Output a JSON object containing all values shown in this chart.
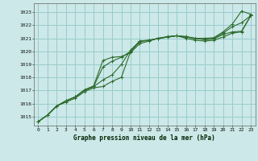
{
  "title": "Graphe pression niveau de la mer (hPa)",
  "background_color": "#cce8e8",
  "grid_color": "#99cccc",
  "line_color": "#2d6b2d",
  "xlim": [
    -0.5,
    23.5
  ],
  "ylim": [
    1014.3,
    1023.7
  ],
  "yticks": [
    1015,
    1016,
    1017,
    1018,
    1019,
    1020,
    1021,
    1022,
    1023
  ],
  "xticks": [
    0,
    1,
    2,
    3,
    4,
    5,
    6,
    7,
    8,
    9,
    10,
    11,
    12,
    13,
    14,
    15,
    16,
    17,
    18,
    19,
    20,
    21,
    22,
    23
  ],
  "series": [
    [
      1014.6,
      1015.1,
      1015.8,
      1016.1,
      1016.4,
      1016.9,
      1017.2,
      1017.3,
      1017.7,
      1018.0,
      1020.0,
      1020.8,
      1020.85,
      1021.0,
      1021.15,
      1021.2,
      1021.15,
      1021.0,
      1021.0,
      1021.05,
      1021.5,
      1022.1,
      1023.1,
      1022.85
    ],
    [
      1014.6,
      1015.1,
      1015.8,
      1016.2,
      1016.5,
      1017.0,
      1017.3,
      1017.8,
      1018.2,
      1019.0,
      1020.1,
      1020.8,
      1020.85,
      1021.0,
      1021.1,
      1021.2,
      1021.1,
      1021.0,
      1020.95,
      1021.0,
      1021.4,
      1021.9,
      1022.2,
      1022.75
    ],
    [
      1014.6,
      1015.1,
      1015.8,
      1016.2,
      1016.5,
      1017.0,
      1017.3,
      1018.8,
      1019.25,
      1019.55,
      1020.0,
      1020.75,
      1020.85,
      1021.0,
      1021.1,
      1021.2,
      1021.1,
      1021.0,
      1020.9,
      1020.95,
      1021.3,
      1021.5,
      1021.55,
      1022.75
    ],
    [
      1014.6,
      1015.1,
      1015.8,
      1016.2,
      1016.5,
      1017.05,
      1017.35,
      1019.3,
      1019.55,
      1019.6,
      1019.9,
      1020.6,
      1020.8,
      1021.0,
      1021.1,
      1021.2,
      1021.0,
      1020.85,
      1020.8,
      1020.85,
      1021.1,
      1021.4,
      1021.5,
      1022.75
    ]
  ]
}
